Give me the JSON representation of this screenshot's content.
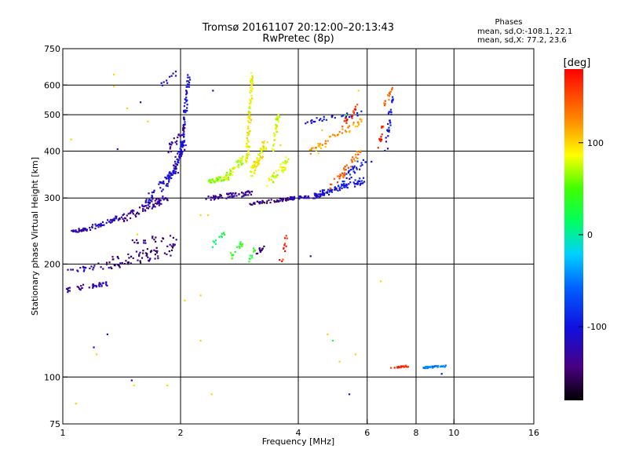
{
  "chart_data": {
    "type": "scatter",
    "title": "Tromsø 20161107 20:12:00–20:13:43",
    "subtitle": "RwPretec (8p)",
    "xlabel": "Frequency [MHz]",
    "ylabel": "Stationary phase Virtual Height [km]",
    "x_scale": "log",
    "y_scale": "log",
    "xlim": [
      1,
      16
    ],
    "ylim": [
      75,
      750
    ],
    "x_ticks": [
      1,
      2,
      4,
      6,
      8,
      10,
      16
    ],
    "x_tick_labels": [
      "1",
      "2",
      "4",
      "6",
      "8",
      "10",
      "16"
    ],
    "x_grid": [
      2,
      4,
      6,
      8,
      10
    ],
    "y_ticks": [
      75,
      100,
      200,
      300,
      400,
      500,
      600,
      750
    ],
    "y_tick_labels": [
      "75",
      "100",
      "200",
      "300",
      "400",
      "500",
      "600",
      "750"
    ],
    "y_grid": [
      100,
      200,
      300,
      400,
      500,
      600
    ],
    "grid": true,
    "phase_box": {
      "title": "Phases",
      "line1": "mean, sd,O:-108.1, 22.1",
      "line2": "mean, sd,X:  77.2, 23.6"
    },
    "colorbar": {
      "label": "[deg]",
      "range": [
        -180,
        180
      ],
      "ticks": [
        100,
        0,
        -100
      ],
      "tick_labels": [
        "100",
        "0",
        "-100"
      ],
      "colormap": "rainbow"
    },
    "series": [
      {
        "x0": 1.05,
        "x1": 1.18,
        "y0": 245,
        "y1": 248,
        "n": 30,
        "phase": -125,
        "spread": [
          3,
          2
        ]
      },
      {
        "x0": 1.18,
        "x1": 1.45,
        "y0": 250,
        "y1": 270,
        "n": 40,
        "phase": -118,
        "spread": [
          3,
          3
        ]
      },
      {
        "x0": 1.4,
        "x1": 1.85,
        "y0": 262,
        "y1": 300,
        "n": 70,
        "phase": -135,
        "spread": [
          3,
          5
        ]
      },
      {
        "x0": 1.6,
        "x1": 1.95,
        "y0": 285,
        "y1": 360,
        "n": 50,
        "phase": -110,
        "spread": [
          3,
          6
        ]
      },
      {
        "x0": 1.85,
        "x1": 2.05,
        "y0": 330,
        "y1": 420,
        "n": 60,
        "phase": -112,
        "spread": [
          2,
          6
        ]
      },
      {
        "x0": 2.0,
        "x1": 2.1,
        "y0": 380,
        "y1": 640,
        "n": 70,
        "phase": -105,
        "spread": [
          2,
          4
        ]
      },
      {
        "x0": 1.0,
        "x1": 1.3,
        "y0": 170,
        "y1": 178,
        "n": 40,
        "phase": -122,
        "spread": [
          3,
          3
        ]
      },
      {
        "x0": 1.0,
        "x1": 1.35,
        "y0": 190,
        "y1": 200,
        "n": 25,
        "phase": -128,
        "spread": [
          3,
          4
        ]
      },
      {
        "x0": 1.3,
        "x1": 1.95,
        "y0": 200,
        "y1": 220,
        "n": 70,
        "phase": -145,
        "spread": [
          3,
          8
        ]
      },
      {
        "x0": 1.5,
        "x1": 1.95,
        "y0": 230,
        "y1": 235,
        "n": 20,
        "phase": -140,
        "spread": [
          3,
          4
        ]
      },
      {
        "x0": 1.85,
        "x1": 2.05,
        "y0": 400,
        "y1": 460,
        "n": 25,
        "phase": -135,
        "spread": [
          2,
          5
        ]
      },
      {
        "x0": 2.35,
        "x1": 3.1,
        "y0": 300,
        "y1": 310,
        "n": 60,
        "phase": -135,
        "spread": [
          3,
          3
        ]
      },
      {
        "x0": 3.0,
        "x1": 3.9,
        "y0": 290,
        "y1": 300,
        "n": 60,
        "phase": -140,
        "spread": [
          3,
          2
        ]
      },
      {
        "x0": 3.8,
        "x1": 4.6,
        "y0": 300,
        "y1": 305,
        "n": 40,
        "phase": -118,
        "spread": [
          3,
          2
        ]
      },
      {
        "x0": 4.4,
        "x1": 5.9,
        "y0": 305,
        "y1": 335,
        "n": 80,
        "phase": -100,
        "spread": [
          3,
          4
        ]
      },
      {
        "x0": 5.2,
        "x1": 5.95,
        "y0": 335,
        "y1": 380,
        "n": 30,
        "phase": -95,
        "spread": [
          2,
          6
        ]
      },
      {
        "x0": 2.35,
        "x1": 2.7,
        "y0": 330,
        "y1": 345,
        "n": 40,
        "phase": 65,
        "spread": [
          3,
          3
        ]
      },
      {
        "x0": 2.6,
        "x1": 2.95,
        "y0": 340,
        "y1": 390,
        "n": 40,
        "phase": 75,
        "spread": [
          3,
          5
        ]
      },
      {
        "x0": 2.95,
        "x1": 3.05,
        "y0": 370,
        "y1": 640,
        "n": 80,
        "phase": 85,
        "spread": [
          2,
          5
        ]
      },
      {
        "x0": 3.05,
        "x1": 3.3,
        "y0": 350,
        "y1": 420,
        "n": 60,
        "phase": 90,
        "spread": [
          3,
          5
        ]
      },
      {
        "x0": 3.35,
        "x1": 3.8,
        "y0": 330,
        "y1": 380,
        "n": 40,
        "phase": 82,
        "spread": [
          3,
          5
        ]
      },
      {
        "x0": 3.45,
        "x1": 3.55,
        "y0": 400,
        "y1": 500,
        "n": 30,
        "phase": 80,
        "spread": [
          2,
          4
        ]
      },
      {
        "x0": 4.3,
        "x1": 5.8,
        "y0": 400,
        "y1": 480,
        "n": 50,
        "phase": 120,
        "spread": [
          3,
          5
        ]
      },
      {
        "x0": 4.8,
        "x1": 5.8,
        "y0": 320,
        "y1": 400,
        "n": 40,
        "phase": 140,
        "spread": [
          3,
          5
        ]
      },
      {
        "x0": 4.2,
        "x1": 5.8,
        "y0": 480,
        "y1": 505,
        "n": 30,
        "phase": -100,
        "spread": [
          3,
          3
        ]
      },
      {
        "x0": 5.2,
        "x1": 5.7,
        "y0": 470,
        "y1": 530,
        "n": 20,
        "phase": 160,
        "spread": [
          3,
          4
        ]
      },
      {
        "x0": 6.45,
        "x1": 6.6,
        "y0": 410,
        "y1": 470,
        "n": 12,
        "phase": 165,
        "spread": [
          2,
          3
        ]
      },
      {
        "x0": 6.7,
        "x1": 6.95,
        "y0": 400,
        "y1": 560,
        "n": 30,
        "phase": -100,
        "spread": [
          2,
          4
        ]
      },
      {
        "x0": 6.6,
        "x1": 7.0,
        "y0": 520,
        "y1": 600,
        "n": 15,
        "phase": 140,
        "spread": [
          2,
          3
        ]
      },
      {
        "x0": 2.4,
        "x1": 2.6,
        "y0": 225,
        "y1": 240,
        "n": 12,
        "phase": 20,
        "spread": [
          2,
          4
        ]
      },
      {
        "x0": 2.7,
        "x1": 2.9,
        "y0": 210,
        "y1": 230,
        "n": 15,
        "phase": 40,
        "spread": [
          2,
          4
        ]
      },
      {
        "x0": 3.0,
        "x1": 3.1,
        "y0": 205,
        "y1": 220,
        "n": 10,
        "phase": 30,
        "spread": [
          2,
          3
        ]
      },
      {
        "x0": 3.1,
        "x1": 3.3,
        "y0": 210,
        "y1": 225,
        "n": 12,
        "phase": -140,
        "spread": [
          2,
          3
        ]
      },
      {
        "x0": 3.6,
        "x1": 3.75,
        "y0": 200,
        "y1": 245,
        "n": 12,
        "phase": 165,
        "spread": [
          2,
          5
        ]
      },
      {
        "x0": 1.8,
        "x1": 1.95,
        "y0": 600,
        "y1": 650,
        "n": 10,
        "phase": -110,
        "spread": [
          2,
          3
        ]
      },
      {
        "x0": 6.9,
        "x1": 7.7,
        "y0": 106,
        "y1": 107,
        "n": 20,
        "phase": 170,
        "spread": [
          2,
          1
        ]
      },
      {
        "x0": 8.4,
        "x1": 9.5,
        "y0": 106,
        "y1": 107,
        "n": 45,
        "phase": -45,
        "spread": [
          2,
          1
        ]
      }
    ],
    "isolated_points": [
      [
        1.05,
        430,
        100
      ],
      [
        1.08,
        85,
        100
      ],
      [
        1.2,
        120,
        -100
      ],
      [
        1.22,
        115,
        100
      ],
      [
        1.35,
        595,
        100
      ],
      [
        1.35,
        640,
        100
      ],
      [
        1.38,
        405,
        -120
      ],
      [
        1.46,
        520,
        100
      ],
      [
        1.5,
        98,
        -130
      ],
      [
        1.52,
        95,
        100
      ],
      [
        1.58,
        540,
        -130
      ],
      [
        1.65,
        480,
        100
      ],
      [
        1.85,
        95,
        100
      ],
      [
        1.3,
        130,
        -100
      ],
      [
        1.55,
        240,
        100
      ],
      [
        2.05,
        160,
        100
      ],
      [
        2.25,
        125,
        100
      ],
      [
        2.25,
        165,
        100
      ],
      [
        2.25,
        270,
        100
      ],
      [
        2.35,
        270,
        100
      ],
      [
        2.4,
        90,
        100
      ],
      [
        2.42,
        580,
        -120
      ],
      [
        3.6,
        415,
        100
      ],
      [
        4.3,
        210,
        -130
      ],
      [
        4.5,
        395,
        100
      ],
      [
        4.6,
        455,
        100
      ],
      [
        4.75,
        130,
        100
      ],
      [
        4.9,
        125,
        30
      ],
      [
        5.1,
        110,
        100
      ],
      [
        5.3,
        500,
        30
      ],
      [
        5.4,
        90,
        -100
      ],
      [
        5.6,
        115,
        100
      ],
      [
        5.7,
        580,
        100
      ],
      [
        6.15,
        375,
        -110
      ],
      [
        6.5,
        180,
        100
      ],
      [
        9.3,
        102,
        -100
      ]
    ]
  }
}
